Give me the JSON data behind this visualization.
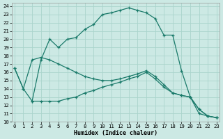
{
  "xlabel": "Humidex (Indice chaleur)",
  "xlim": [
    -0.3,
    23.3
  ],
  "ylim": [
    10,
    24.4
  ],
  "yticks": [
    10,
    11,
    12,
    13,
    14,
    15,
    16,
    17,
    18,
    19,
    20,
    21,
    22,
    23,
    24
  ],
  "xticks": [
    0,
    1,
    2,
    3,
    4,
    5,
    6,
    7,
    8,
    9,
    10,
    11,
    12,
    13,
    14,
    15,
    16,
    17,
    18,
    19,
    20,
    21,
    22,
    23
  ],
  "bg_color": "#cce9e4",
  "grid_color": "#aad4cc",
  "line_color": "#1a7a6a",
  "curve1_x": [
    0,
    1,
    2,
    3,
    4,
    5,
    6,
    7,
    8,
    9,
    10,
    11,
    12,
    13,
    14,
    15,
    16,
    17,
    18,
    19,
    20,
    21,
    22,
    23
  ],
  "curve1_y": [
    16.5,
    14.0,
    12.5,
    17.5,
    20.0,
    19.0,
    20.0,
    20.2,
    21.2,
    21.8,
    23.0,
    23.2,
    23.5,
    23.8,
    23.5,
    23.2,
    22.5,
    20.5,
    20.5,
    16.2,
    13.0,
    11.0,
    10.7,
    10.5
  ],
  "curve2_x": [
    0,
    1,
    2,
    3,
    4,
    5,
    6,
    7,
    8,
    9,
    10,
    11,
    12,
    13,
    14,
    15,
    16,
    17,
    18,
    19,
    20,
    21,
    22,
    23
  ],
  "curve2_y": [
    16.5,
    14.0,
    17.5,
    17.8,
    17.5,
    17.0,
    16.5,
    16.0,
    15.5,
    15.2,
    15.0,
    15.0,
    15.2,
    15.5,
    15.8,
    16.2,
    15.5,
    14.5,
    13.5,
    13.2,
    13.0,
    11.5,
    10.7,
    10.5
  ],
  "curve3_x": [
    2,
    3,
    4,
    5,
    6,
    7,
    8,
    9,
    10,
    11,
    12,
    13,
    14,
    15,
    16,
    17,
    18,
    19,
    20,
    21,
    22,
    23
  ],
  "curve3_y": [
    12.5,
    12.5,
    12.5,
    12.5,
    12.8,
    13.0,
    13.5,
    13.8,
    14.2,
    14.5,
    14.8,
    15.2,
    15.5,
    16.0,
    15.2,
    14.2,
    13.5,
    13.2,
    13.0,
    11.5,
    10.7,
    10.5
  ]
}
